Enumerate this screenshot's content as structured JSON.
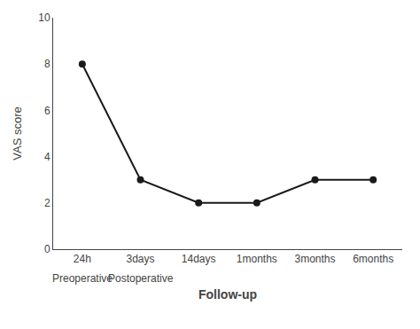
{
  "chart_data": {
    "type": "line",
    "categories": [
      "24h",
      "3days",
      "14days",
      "1months",
      "3months",
      "6months"
    ],
    "values": [
      8,
      3,
      2,
      2,
      3,
      3
    ],
    "color": "#1a1a1a",
    "marker": "circle",
    "xlabel": "Follow-up",
    "ylabel": "VAS score",
    "ylim": [
      0,
      10
    ],
    "yticks": [
      0,
      2,
      4,
      6,
      8,
      10
    ],
    "grid": false,
    "annotations": [
      {
        "text": "Preoperative",
        "category": "24h"
      },
      {
        "text": "Postoperative",
        "category": "3days"
      }
    ]
  }
}
